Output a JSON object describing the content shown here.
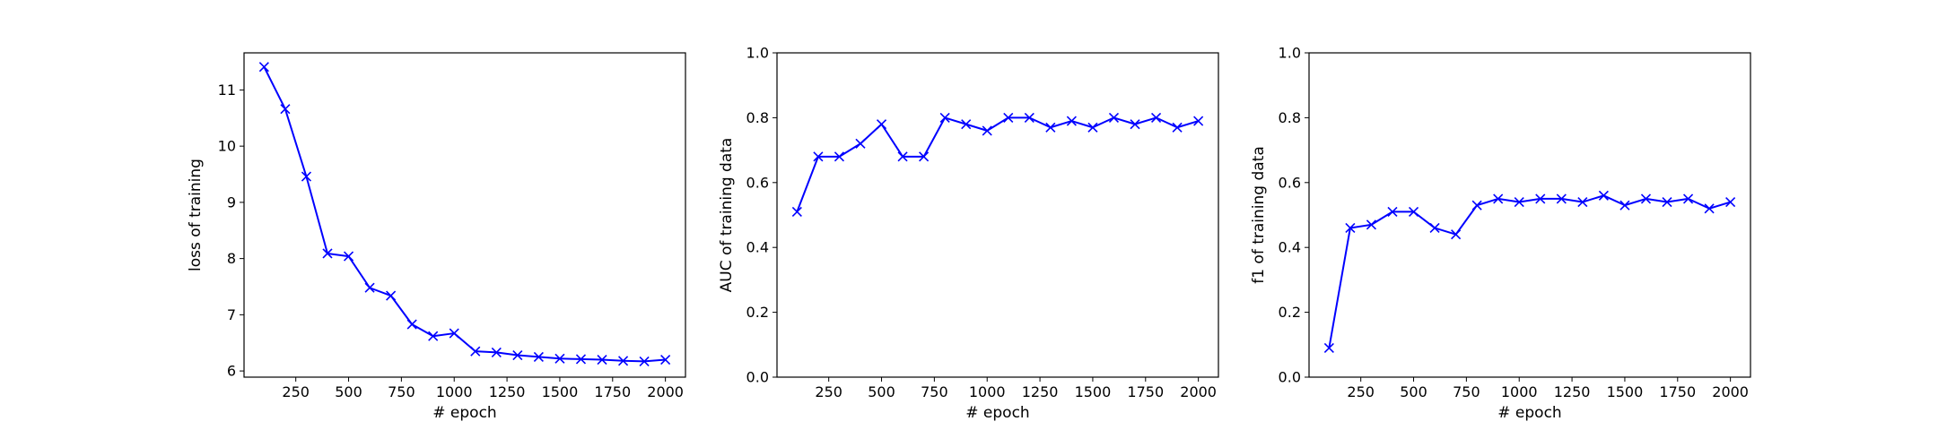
{
  "figure": {
    "background": "#ffffff",
    "line_color": "#0000ff",
    "axis_color": "#000000"
  },
  "chart_data": [
    {
      "type": "line",
      "title": "",
      "xlabel": "# epoch",
      "ylabel": "loss of training",
      "xlim": [
        5,
        2095
      ],
      "ylim": [
        5.89,
        11.66
      ],
      "xticks": [
        250,
        500,
        750,
        1000,
        1250,
        1500,
        1750,
        2000
      ],
      "yticks": [
        6,
        7,
        8,
        9,
        10,
        11
      ],
      "ytick_labels": [
        "6",
        "7",
        "8",
        "9",
        "10",
        "11"
      ],
      "grid": false,
      "marker": "x",
      "series": [
        {
          "x": [
            100,
            200,
            300,
            400,
            500,
            600,
            700,
            800,
            900,
            1000,
            1100,
            1200,
            1300,
            1400,
            1500,
            1600,
            1700,
            1800,
            1900,
            2000
          ],
          "values": [
            11.41,
            10.66,
            9.46,
            8.09,
            8.04,
            7.48,
            7.34,
            6.83,
            6.62,
            6.67,
            6.35,
            6.33,
            6.28,
            6.25,
            6.22,
            6.21,
            6.2,
            6.18,
            6.17,
            6.2
          ]
        }
      ]
    },
    {
      "type": "line",
      "title": "",
      "xlabel": "# epoch",
      "ylabel": "AUC of training data",
      "xlim": [
        5,
        2095
      ],
      "ylim": [
        0.0,
        1.0
      ],
      "xticks": [
        250,
        500,
        750,
        1000,
        1250,
        1500,
        1750,
        2000
      ],
      "yticks": [
        0.0,
        0.2,
        0.4,
        0.6,
        0.8,
        1.0
      ],
      "ytick_labels": [
        "0.0",
        "0.2",
        "0.4",
        "0.6",
        "0.8",
        "1.0"
      ],
      "grid": false,
      "marker": "x",
      "series": [
        {
          "x": [
            100,
            200,
            300,
            400,
            500,
            600,
            700,
            800,
            900,
            1000,
            1100,
            1200,
            1300,
            1400,
            1500,
            1600,
            1700,
            1800,
            1900,
            2000
          ],
          "values": [
            0.51,
            0.68,
            0.68,
            0.72,
            0.78,
            0.68,
            0.68,
            0.8,
            0.78,
            0.76,
            0.8,
            0.8,
            0.77,
            0.79,
            0.77,
            0.8,
            0.78,
            0.8,
            0.77,
            0.79
          ]
        }
      ]
    },
    {
      "type": "line",
      "title": "",
      "xlabel": "# epoch",
      "ylabel": "f1 of training data",
      "xlim": [
        5,
        2095
      ],
      "ylim": [
        0.0,
        1.0
      ],
      "xticks": [
        250,
        500,
        750,
        1000,
        1250,
        1500,
        1750,
        2000
      ],
      "yticks": [
        0.0,
        0.2,
        0.4,
        0.6,
        0.8,
        1.0
      ],
      "ytick_labels": [
        "0.0",
        "0.2",
        "0.4",
        "0.6",
        "0.8",
        "1.0"
      ],
      "grid": false,
      "marker": "x",
      "series": [
        {
          "x": [
            100,
            200,
            300,
            400,
            500,
            600,
            700,
            800,
            900,
            1000,
            1100,
            1200,
            1300,
            1400,
            1500,
            1600,
            1700,
            1800,
            1900,
            2000
          ],
          "values": [
            0.09,
            0.46,
            0.47,
            0.51,
            0.51,
            0.46,
            0.44,
            0.53,
            0.55,
            0.54,
            0.55,
            0.55,
            0.54,
            0.56,
            0.53,
            0.55,
            0.54,
            0.55,
            0.52,
            0.54
          ]
        }
      ]
    }
  ]
}
